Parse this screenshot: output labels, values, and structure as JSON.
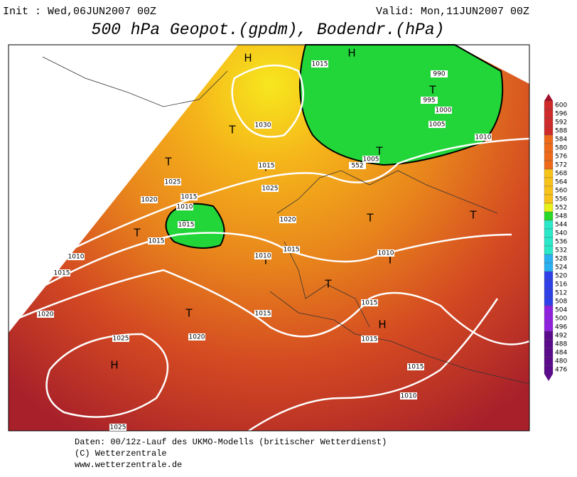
{
  "header": {
    "init": "Init : Wed,06JUN2007 00Z",
    "valid": "Valid: Mon,11JUN2007 00Z",
    "title": "500 hPa Geopot.(gpdm), Bodendr.(hPa)"
  },
  "map": {
    "labels": [
      "H",
      "H",
      "T",
      "T",
      "T",
      "T",
      "T",
      "T",
      "T",
      "T",
      "T",
      "T",
      "T",
      "T",
      "T",
      "H",
      "H"
    ],
    "isobars": [
      1015,
      990,
      995,
      1000,
      1005,
      1010,
      1030,
      1025,
      1015,
      1025,
      1020,
      1015,
      1010,
      1015,
      1015,
      1020,
      1015,
      1010,
      1010,
      1005,
      552,
      1010,
      1015,
      1020,
      1025,
      1015,
      1015,
      1020,
      1015,
      1015,
      1010,
      1025
    ]
  },
  "legend": {
    "ticks": [
      600,
      596,
      592,
      588,
      584,
      580,
      576,
      572,
      568,
      564,
      560,
      556,
      552,
      548,
      544,
      540,
      536,
      532,
      528,
      524,
      520,
      516,
      512,
      508,
      504,
      500,
      496,
      492,
      488,
      484,
      480,
      476
    ]
  },
  "footer": {
    "lines": [
      "Daten: 00/12z-Lauf des UKMO-Modells (britischer Wetterdienst)",
      "(C) Wetterzentrale",
      "www.wetterzentrale.de"
    ]
  }
}
